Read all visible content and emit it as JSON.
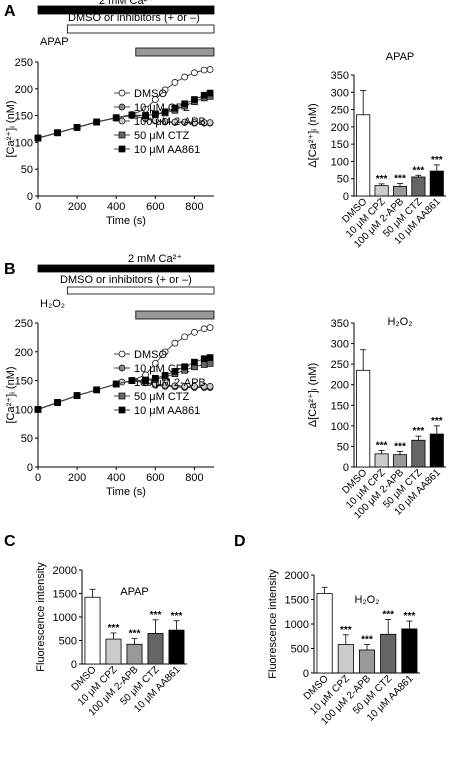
{
  "panels": [
    "A",
    "B",
    "C",
    "D"
  ],
  "bar_colors": [
    "#ffffff",
    "#cccccc",
    "#999999",
    "#666666",
    "#000000"
  ],
  "chart_data": [
    {
      "id": "A-trace",
      "type": "line",
      "xlabel": "Time (s)",
      "ylabel": "[Ca²⁺]ᵢ (nM)",
      "xlim": [
        0,
        900
      ],
      "ylim": [
        0,
        250
      ],
      "xticks": [
        0,
        200,
        400,
        600,
        800
      ],
      "yticks": [
        0,
        50,
        100,
        150,
        200,
        250
      ],
      "bars": [
        {
          "label": "2 mM Ca²⁺",
          "x0": 0,
          "x1": 900,
          "fill": "#000000"
        },
        {
          "label": "DMSO or inhibitors (+ or –)",
          "x0": 150,
          "x1": 900,
          "fill": "#ffffff"
        },
        {
          "label": "APAP",
          "x0": 500,
          "x1": 900,
          "fill": "#999999"
        }
      ],
      "series": [
        {
          "name": "DMSO",
          "marker": "open-circle",
          "x": [
            0,
            100,
            200,
            300,
            400,
            480,
            550,
            600,
            650,
            700,
            750,
            800,
            850,
            880
          ],
          "y": [
            108,
            118,
            128,
            138,
            146,
            152,
            162,
            180,
            198,
            212,
            222,
            230,
            235,
            236
          ]
        },
        {
          "name": "10 μM CPZ",
          "marker": "gray-circle",
          "x": [
            0,
            100,
            200,
            300,
            400,
            480,
            550,
            600,
            650,
            700,
            750,
            800,
            850,
            880
          ],
          "y": [
            108,
            118,
            128,
            138,
            146,
            150,
            144,
            140,
            138,
            137,
            137,
            136,
            136,
            136
          ]
        },
        {
          "name": "100 μM 2-APB",
          "marker": "light-circle",
          "x": [
            0,
            100,
            200,
            300,
            400,
            480,
            550,
            600,
            650,
            700,
            750,
            800,
            850,
            880
          ],
          "y": [
            108,
            118,
            128,
            138,
            146,
            150,
            145,
            141,
            139,
            138,
            138,
            137,
            137,
            137
          ]
        },
        {
          "name": "50 μM CTZ",
          "marker": "gray-square",
          "x": [
            0,
            100,
            200,
            300,
            400,
            480,
            550,
            600,
            650,
            700,
            750,
            800,
            850,
            880
          ],
          "y": [
            108,
            118,
            128,
            138,
            146,
            151,
            150,
            152,
            155,
            160,
            168,
            176,
            183,
            186
          ]
        },
        {
          "name": "10 μM AA861",
          "marker": "black-square",
          "x": [
            0,
            100,
            200,
            300,
            400,
            480,
            550,
            600,
            650,
            700,
            750,
            800,
            850,
            880
          ],
          "y": [
            108,
            118,
            128,
            138,
            146,
            151,
            150,
            153,
            157,
            164,
            172,
            180,
            188,
            192
          ]
        }
      ]
    },
    {
      "id": "A-bar",
      "type": "bar",
      "title": "APAP",
      "ylabel": "Δ[Ca²⁺]ᵢ (nM)",
      "ylim": [
        0,
        350
      ],
      "yticks": [
        0,
        50,
        100,
        150,
        200,
        250,
        300,
        350
      ],
      "categories": [
        "DMSO",
        "10 μM CPZ",
        "100 μM 2-APB",
        "50 μM CTZ",
        "10 μM AA861"
      ],
      "values": [
        235,
        30,
        28,
        55,
        72
      ],
      "errors": [
        70,
        5,
        8,
        5,
        18
      ],
      "annotations": [
        "",
        "***",
        "***",
        "***",
        "***"
      ]
    },
    {
      "id": "B-trace",
      "type": "line",
      "xlabel": "Time (s)",
      "ylabel": "[Ca²⁺]ᵢ (nM)",
      "xlim": [
        0,
        900
      ],
      "ylim": [
        0,
        250
      ],
      "xticks": [
        0,
        200,
        400,
        600,
        800
      ],
      "yticks": [
        0,
        50,
        100,
        150,
        200,
        250
      ],
      "bars": [
        {
          "label": "2 mM Ca²⁺",
          "x0": 0,
          "x1": 900,
          "fill": "#000000"
        },
        {
          "label": "DMSO or inhibitors (+ or –)",
          "x0": 150,
          "x1": 900,
          "fill": "#ffffff"
        },
        {
          "label": "H₂O₂",
          "x0": 500,
          "x1": 900,
          "fill": "#999999"
        }
      ],
      "series": [
        {
          "name": "DMSO",
          "marker": "open-circle",
          "x": [
            0,
            100,
            200,
            300,
            400,
            480,
            550,
            600,
            650,
            700,
            750,
            800,
            850,
            880
          ],
          "y": [
            100,
            112,
            124,
            134,
            144,
            150,
            160,
            180,
            200,
            215,
            226,
            234,
            240,
            242
          ]
        },
        {
          "name": "10 μM CPZ",
          "marker": "gray-circle",
          "x": [
            0,
            100,
            200,
            300,
            400,
            480,
            550,
            600,
            650,
            700,
            750,
            800,
            850,
            880
          ],
          "y": [
            100,
            112,
            124,
            134,
            144,
            150,
            146,
            142,
            140,
            139,
            138,
            138,
            138,
            138
          ]
        },
        {
          "name": "100 μM 2-APB",
          "marker": "light-circle",
          "x": [
            0,
            100,
            200,
            300,
            400,
            480,
            550,
            600,
            650,
            700,
            750,
            800,
            850,
            880
          ],
          "y": [
            100,
            112,
            124,
            134,
            144,
            150,
            147,
            144,
            142,
            141,
            140,
            140,
            140,
            140
          ]
        },
        {
          "name": "50 μM CTZ",
          "marker": "gray-square",
          "x": [
            0,
            100,
            200,
            300,
            400,
            480,
            550,
            600,
            650,
            700,
            750,
            800,
            850,
            880
          ],
          "y": [
            100,
            112,
            124,
            134,
            144,
            150,
            150,
            152,
            156,
            162,
            168,
            174,
            178,
            180
          ]
        },
        {
          "name": "10 μM AA861",
          "marker": "black-square",
          "x": [
            0,
            100,
            200,
            300,
            400,
            480,
            550,
            600,
            650,
            700,
            750,
            800,
            850,
            880
          ],
          "y": [
            100,
            112,
            124,
            134,
            144,
            150,
            151,
            154,
            159,
            166,
            174,
            182,
            188,
            190
          ]
        }
      ]
    },
    {
      "id": "B-bar",
      "type": "bar",
      "title": "H₂O₂",
      "ylabel": "Δ[Ca²⁺]ᵢ (nM)",
      "ylim": [
        0,
        350
      ],
      "yticks": [
        0,
        50,
        100,
        150,
        200,
        250,
        300,
        350
      ],
      "categories": [
        "DMSO",
        "10 μM CPZ",
        "100 μM 2-APB",
        "50 μM CTZ",
        "10 μM AA861"
      ],
      "values": [
        235,
        32,
        30,
        65,
        80
      ],
      "errors": [
        50,
        8,
        8,
        10,
        20
      ],
      "annotations": [
        "",
        "***",
        "***",
        "***",
        "***"
      ]
    },
    {
      "id": "C-bar",
      "type": "bar",
      "title": "APAP",
      "ylabel": "Fluorescence intensity",
      "ylim": [
        0,
        2000
      ],
      "yticks": [
        0,
        500,
        1000,
        1500,
        2000
      ],
      "categories": [
        "DMSO",
        "10 μM CPZ",
        "100 μM 2-APB",
        "50 μM CTZ",
        "10 μM AA861"
      ],
      "values": [
        1420,
        530,
        420,
        650,
        720
      ],
      "errors": [
        170,
        130,
        120,
        290,
        200
      ],
      "annotations": [
        "",
        "***",
        "***",
        "***",
        "***"
      ]
    },
    {
      "id": "D-bar",
      "type": "bar",
      "title": "H₂O₂",
      "ylabel": "Fluorescence intensity",
      "ylim": [
        0,
        2000
      ],
      "yticks": [
        0,
        500,
        1000,
        1500,
        2000
      ],
      "categories": [
        "DMSO",
        "10 μM CPZ",
        "100 μM 2-APB",
        "50 μM CTZ",
        "10 μM AA861"
      ],
      "values": [
        1620,
        580,
        470,
        790,
        900
      ],
      "errors": [
        130,
        200,
        110,
        300,
        160
      ],
      "annotations": [
        "",
        "***",
        "***",
        "***",
        "***"
      ]
    }
  ]
}
